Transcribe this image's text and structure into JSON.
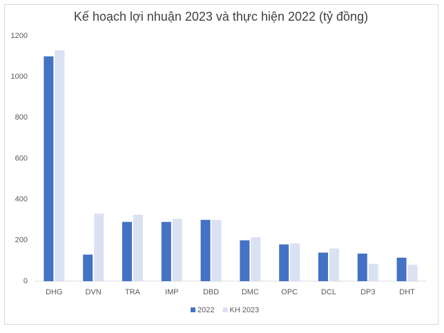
{
  "chart_data": {
    "type": "bar",
    "title": "Kế hoạch lợi nhuận 2023 và thực hiện 2022 (tỷ đồng)",
    "categories": [
      "DHG",
      "DVN",
      "TRA",
      "IMP",
      "DBD",
      "DMC",
      "OPC",
      "DCL",
      "DP3",
      "DHT"
    ],
    "series": [
      {
        "name": "2022",
        "color": "#4472c4",
        "values": [
          1100,
          130,
          290,
          290,
          300,
          200,
          180,
          140,
          135,
          115
        ]
      },
      {
        "name": "KH 2023",
        "color": "#d9e1f2",
        "values": [
          1130,
          330,
          325,
          305,
          300,
          215,
          185,
          160,
          85,
          80
        ]
      }
    ],
    "ylim": [
      0,
      1200
    ],
    "yticks": [
      0,
      200,
      400,
      600,
      800,
      1000,
      1200
    ],
    "grid": false,
    "legend": "bottom"
  }
}
